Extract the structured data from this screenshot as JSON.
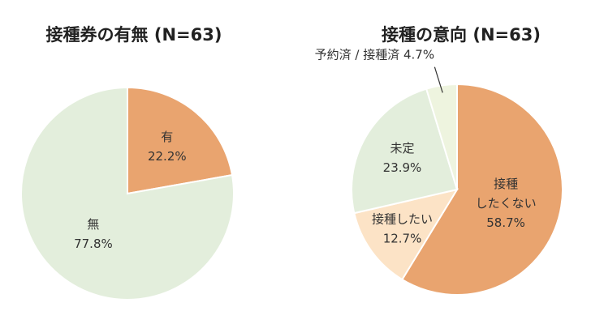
{
  "chart_data": [
    {
      "type": "pie",
      "title": "接種券の有無 (N=63)",
      "slices": [
        {
          "label": "有",
          "value": 22.2,
          "value_text": "22.2%",
          "color": "#E9A46F"
        },
        {
          "label": "無",
          "value": 77.8,
          "value_text": "77.8%",
          "color": "#E3EEDC"
        }
      ]
    },
    {
      "type": "pie",
      "title": "接種の意向 (N=63)",
      "slices": [
        {
          "label": [
            "接種",
            "したくない"
          ],
          "value": 58.7,
          "value_text": "58.7%",
          "color": "#E9A46F"
        },
        {
          "label": [
            "接種したい"
          ],
          "value": 12.7,
          "value_text": "12.7%",
          "color": "#FCE3C6"
        },
        {
          "label": [
            "未定"
          ],
          "value": 23.9,
          "value_text": "23.9%",
          "color": "#E3EEDC"
        },
        {
          "label": [
            "予約済 / 接種済 4.7%"
          ],
          "value": 4.7,
          "value_text": "",
          "color": "#EEF4DF",
          "outside": true
        }
      ]
    }
  ]
}
